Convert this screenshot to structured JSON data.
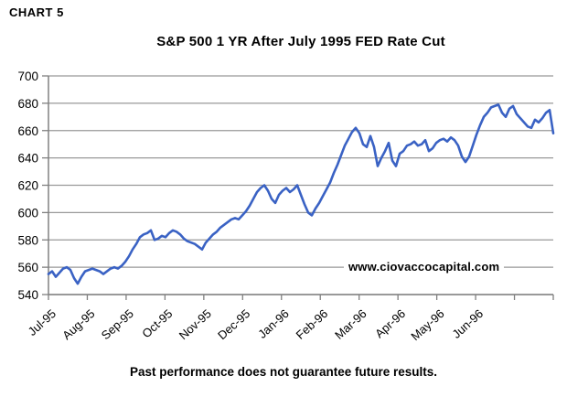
{
  "page": {
    "chart_label": "CHART 5",
    "watermark": "www.ciovaccocapital.com",
    "footer": "Past performance does not guarantee future results."
  },
  "chart_data": {
    "type": "line",
    "title": "S&P 500 1 YR After July 1995 FED Rate Cut",
    "xlabel": "",
    "ylabel": "",
    "ylim": [
      540,
      700
    ],
    "y_ticks": [
      540,
      560,
      580,
      600,
      620,
      640,
      660,
      680,
      700
    ],
    "x_tick_labels": [
      "Jul-95",
      "Aug-95",
      "Sep-95",
      "Oct-95",
      "Nov-95",
      "Dec-95",
      "Jan-96",
      "Feb-96",
      "Mar-96",
      "Apr-96",
      "May-96",
      "Jun-96"
    ],
    "grid": "horizontal",
    "legend_position": "none",
    "line_color": "#3A62C4",
    "grid_color": "#999999",
    "axis_color": "#808080",
    "series": [
      {
        "name": "S&P 500",
        "values": [
          555,
          557,
          553,
          556,
          559,
          560,
          558,
          552,
          548,
          553,
          557,
          558,
          559,
          558,
          557,
          555,
          557,
          559,
          560,
          559,
          561,
          564,
          568,
          573,
          577,
          582,
          584,
          585,
          587,
          580,
          581,
          583,
          582,
          585,
          587,
          586,
          584,
          581,
          579,
          578,
          577,
          575,
          573,
          578,
          581,
          584,
          586,
          589,
          591,
          593,
          595,
          596,
          595,
          598,
          601,
          605,
          610,
          615,
          618,
          620,
          616,
          610,
          607,
          613,
          616,
          618,
          615,
          617,
          620,
          613,
          606,
          600,
          598,
          603,
          607,
          612,
          617,
          622,
          629,
          635,
          642,
          649,
          654,
          659,
          662,
          658,
          650,
          648,
          656,
          648,
          634,
          640,
          645,
          651,
          638,
          634,
          643,
          645,
          649,
          650,
          652,
          649,
          650,
          653,
          645,
          647,
          651,
          653,
          654,
          652,
          655,
          653,
          649,
          641,
          637,
          641,
          649,
          657,
          664,
          670,
          673,
          677,
          678,
          679,
          673,
          670,
          676,
          678,
          672,
          669,
          666,
          663,
          662,
          668,
          666,
          669,
          673,
          675,
          658
        ]
      }
    ]
  }
}
